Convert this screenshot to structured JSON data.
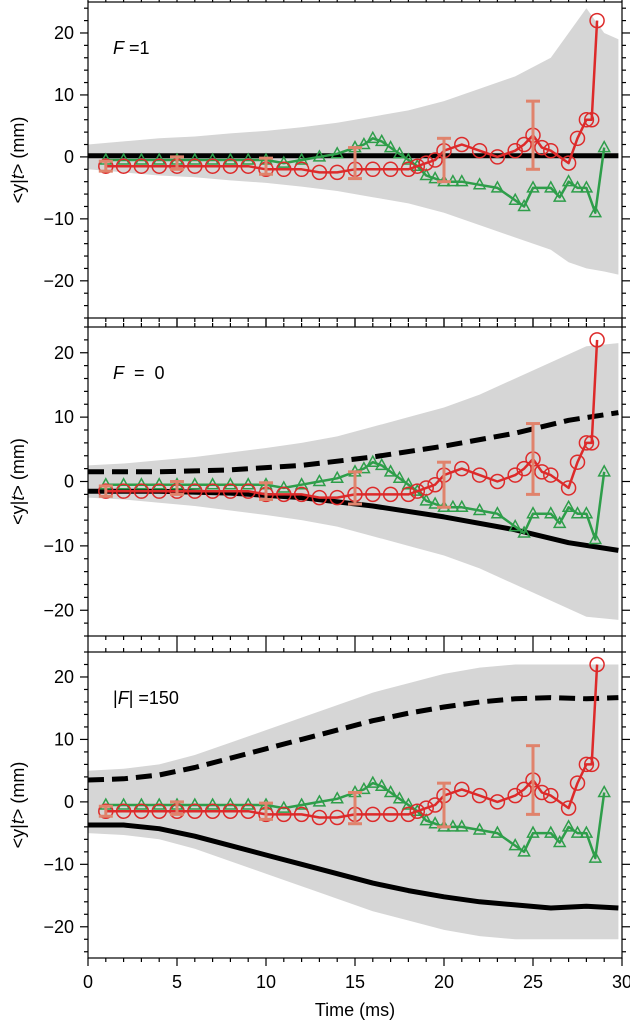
{
  "chart_data": [
    {
      "type": "line",
      "panel_label": {
        "name": "F",
        "rest": " =1"
      },
      "ylabel": {
        "pre": "<y|",
        "ital": "t",
        "post": "> (mm)"
      },
      "xlabel": "",
      "xlim": [
        0,
        30
      ],
      "ylim": [
        -26,
        25
      ],
      "yticks": [
        "−20",
        "−10",
        "0",
        "10",
        "20"
      ],
      "ytick_values": [
        -20,
        -10,
        0,
        10,
        20
      ],
      "xticks": [],
      "show_xtick_labels": false,
      "band": {
        "color": "#d6d6d6",
        "x": [
          0,
          2,
          4,
          6,
          8,
          10,
          12,
          14,
          16,
          18,
          20,
          22,
          24,
          26,
          27,
          28,
          29,
          29.8
        ],
        "upper": [
          2,
          2.5,
          3,
          3.3,
          3.8,
          4.2,
          4.8,
          5.5,
          6.5,
          7.5,
          9,
          11,
          13,
          16,
          20,
          24,
          20,
          19
        ],
        "lower": [
          -2,
          -2.5,
          -3,
          -3.3,
          -3.8,
          -4.2,
          -4.8,
          -5.5,
          -6.5,
          -7.5,
          -9,
          -11,
          -13,
          -15,
          -17,
          -18,
          -18.5,
          -19
        ]
      },
      "bounds": [
        {
          "style": "solid",
          "color": "#000000",
          "x": [
            0,
            5,
            10,
            15,
            20,
            25,
            29.8
          ],
          "y": [
            0.2,
            0.2,
            0.2,
            0.2,
            0.2,
            0.2,
            0.2
          ]
        }
      ],
      "series": [
        {
          "color": "#2e9e4a",
          "marker": "triangle",
          "x": [
            1,
            2,
            3,
            4,
            5,
            6,
            7,
            8,
            9,
            10,
            11,
            12,
            13,
            14,
            15,
            15.5,
            16,
            16.5,
            17,
            17.5,
            18,
            18.5,
            19,
            19.5,
            20,
            20.5,
            21,
            22,
            23,
            24,
            24.5,
            25,
            26,
            26.5,
            27,
            27.5,
            28,
            28.5,
            29
          ],
          "y": [
            -0.5,
            -0.5,
            -0.5,
            -0.5,
            -0.5,
            -0.5,
            -0.5,
            -0.5,
            -0.5,
            -0.5,
            -1,
            -0.5,
            0,
            0.5,
            1.5,
            2,
            3,
            2.5,
            1.5,
            0.5,
            -0.5,
            -1.5,
            -3,
            -3.5,
            -4,
            -4,
            -4,
            -4.5,
            -5,
            -7,
            -8,
            -5,
            -5,
            -6.5,
            -4,
            -5,
            -5,
            -9,
            1.5
          ]
        },
        {
          "color": "#dd2a2a",
          "marker": "circle",
          "x": [
            1,
            2,
            3,
            4,
            5,
            6,
            7,
            8,
            9,
            10,
            11,
            12,
            13,
            14,
            15,
            16,
            17,
            18,
            18.5,
            19,
            19.5,
            20,
            21,
            22,
            23,
            24,
            24.5,
            25,
            25.5,
            26,
            27,
            27.5,
            28,
            28.3,
            28.6
          ],
          "y": [
            -1.5,
            -1.5,
            -1.5,
            -1.5,
            -1.5,
            -1.5,
            -1.5,
            -1.5,
            -1.5,
            -2,
            -2,
            -2,
            -2.5,
            -2.5,
            -2,
            -2,
            -2,
            -2,
            -1.5,
            -1,
            -0.5,
            1,
            2,
            1,
            0,
            1,
            2,
            3.5,
            1.5,
            1,
            -1,
            3,
            6,
            6,
            22
          ]
        }
      ],
      "error_bars": {
        "color": "#e0836c",
        "x": [
          1,
          5,
          10,
          15,
          20,
          25
        ],
        "y": [
          -1.5,
          -1,
          -1.5,
          -1,
          -0.5,
          3.5
        ],
        "err": [
          0.8,
          1,
          1.3,
          2.5,
          3.5,
          5.5
        ]
      }
    },
    {
      "type": "line",
      "panel_label": {
        "name": "F",
        "rest": "  =  0"
      },
      "ylabel": {
        "pre": "<y|",
        "ital": "t",
        "post": "> (mm)"
      },
      "xlabel": "",
      "xlim": [
        0,
        30
      ],
      "ylim": [
        -24,
        24
      ],
      "yticks": [
        "−20",
        "−10",
        "0",
        "10",
        "20"
      ],
      "ytick_values": [
        -20,
        -10,
        0,
        10,
        20
      ],
      "show_xtick_labels": false,
      "band": {
        "color": "#d6d6d6",
        "x": [
          0,
          2,
          4,
          6,
          8,
          10,
          12,
          14,
          16,
          18,
          20,
          22,
          24,
          26,
          28,
          29.8
        ],
        "upper": [
          2.5,
          2.8,
          3.3,
          3.8,
          4.5,
          5.2,
          6,
          7,
          8.5,
          10,
          11.5,
          13.5,
          16,
          18.5,
          21,
          21.5
        ],
        "lower": [
          -2.5,
          -2.8,
          -3.3,
          -3.8,
          -4.5,
          -5.2,
          -6,
          -7,
          -8.5,
          -10,
          -11.5,
          -13.5,
          -16,
          -18.5,
          -21,
          -21.5
        ]
      },
      "bounds": [
        {
          "style": "dashed",
          "color": "#000000",
          "x": [
            0,
            4,
            8,
            12,
            16,
            20,
            24,
            27,
            29.8
          ],
          "y": [
            1.5,
            1.5,
            1.8,
            2.5,
            3.8,
            5.5,
            7.5,
            9.5,
            10.7
          ]
        },
        {
          "style": "solid",
          "color": "#000000",
          "x": [
            0,
            4,
            8,
            12,
            16,
            20,
            24,
            27,
            29.8
          ],
          "y": [
            -1.5,
            -1.5,
            -1.8,
            -2.5,
            -3.8,
            -5.5,
            -7.5,
            -9.5,
            -10.7
          ]
        }
      ],
      "series": [
        {
          "color": "#2e9e4a",
          "marker": "triangle",
          "x": [
            1,
            2,
            3,
            4,
            5,
            6,
            7,
            8,
            9,
            10,
            11,
            12,
            13,
            14,
            15,
            15.5,
            16,
            16.5,
            17,
            17.5,
            18,
            18.5,
            19,
            19.5,
            20,
            20.5,
            21,
            22,
            23,
            24,
            24.5,
            25,
            26,
            26.5,
            27,
            27.5,
            28,
            28.5,
            29
          ],
          "y": [
            -0.5,
            -0.5,
            -0.5,
            -0.5,
            -0.5,
            -0.5,
            -0.5,
            -0.5,
            -0.5,
            -0.5,
            -1,
            -0.5,
            0,
            0.5,
            1.5,
            2,
            3,
            2.5,
            1.5,
            0.5,
            -0.5,
            -1.5,
            -3,
            -3.5,
            -4,
            -4,
            -4,
            -4.5,
            -5,
            -7,
            -8,
            -5,
            -5,
            -6.5,
            -4,
            -5,
            -5,
            -9,
            1.5
          ]
        },
        {
          "color": "#dd2a2a",
          "marker": "circle",
          "x": [
            1,
            2,
            3,
            4,
            5,
            6,
            7,
            8,
            9,
            10,
            11,
            12,
            13,
            14,
            15,
            16,
            17,
            18,
            18.5,
            19,
            19.5,
            20,
            21,
            22,
            23,
            24,
            24.5,
            25,
            25.5,
            26,
            27,
            27.5,
            28,
            28.3,
            28.6
          ],
          "y": [
            -1.5,
            -1.5,
            -1.5,
            -1.5,
            -1.5,
            -1.5,
            -1.5,
            -1.5,
            -1.5,
            -2,
            -2,
            -2,
            -2.5,
            -2.5,
            -2,
            -2,
            -2,
            -2,
            -1.5,
            -1,
            -0.5,
            1,
            2,
            1,
            0,
            1,
            2,
            3.5,
            1.5,
            1,
            -1,
            3,
            6,
            6,
            22
          ]
        }
      ],
      "error_bars": {
        "color": "#e0836c",
        "x": [
          1,
          5,
          10,
          15,
          20,
          25
        ],
        "y": [
          -1.5,
          -1,
          -1.5,
          -1,
          -0.5,
          3.5
        ],
        "err": [
          0.8,
          1,
          1.3,
          2.5,
          3.5,
          5.5
        ]
      }
    },
    {
      "type": "line",
      "panel_label": {
        "pre": "|",
        "name": "F",
        "rest": "| =150"
      },
      "ylabel": {
        "pre": "<y|",
        "ital": "t",
        "post": "> (mm)"
      },
      "xlabel": "Time (ms)",
      "xlim": [
        0,
        30
      ],
      "ylim": [
        -25,
        24
      ],
      "yticks": [
        "−20",
        "−10",
        "0",
        "10",
        "20"
      ],
      "ytick_values": [
        -20,
        -10,
        0,
        10,
        20
      ],
      "xticks": [
        "0",
        "5",
        "10",
        "15",
        "20",
        "25",
        "30"
      ],
      "xtick_values": [
        0,
        5,
        10,
        15,
        20,
        25,
        30
      ],
      "show_xtick_labels": true,
      "band": {
        "color": "#d6d6d6",
        "x": [
          0,
          2,
          4,
          6,
          8,
          10,
          12,
          14,
          16,
          18,
          20,
          22,
          24,
          26,
          28,
          29.8
        ],
        "upper": [
          5,
          5.3,
          6,
          7.5,
          9.5,
          11.5,
          13.5,
          15.5,
          17.5,
          19,
          20.5,
          21.5,
          22,
          22,
          22,
          22
        ],
        "lower": [
          -5,
          -5.3,
          -6,
          -7.5,
          -9.5,
          -11.5,
          -13.5,
          -15.5,
          -17.5,
          -19,
          -20.5,
          -21.5,
          -22,
          -22,
          -22,
          -22
        ]
      },
      "bounds": [
        {
          "style": "dashed",
          "color": "#000000",
          "x": [
            0,
            2,
            4,
            6,
            8,
            10,
            12,
            14,
            16,
            18,
            20,
            22,
            24,
            26,
            28,
            29.8
          ],
          "y": [
            3.5,
            3.7,
            4.3,
            5.5,
            7,
            8.5,
            10,
            11.5,
            13,
            14.2,
            15.2,
            16,
            16.5,
            16.7,
            16.5,
            16.7
          ]
        },
        {
          "style": "solid",
          "color": "#000000",
          "x": [
            0,
            2,
            4,
            6,
            8,
            10,
            12,
            14,
            16,
            18,
            20,
            22,
            24,
            26,
            28,
            29.8
          ],
          "y": [
            -3.7,
            -3.7,
            -4.3,
            -5.5,
            -7,
            -8.5,
            -10,
            -11.5,
            -13,
            -14.2,
            -15.2,
            -16,
            -16.5,
            -17,
            -16.7,
            -17
          ]
        }
      ],
      "series": [
        {
          "color": "#2e9e4a",
          "marker": "triangle",
          "x": [
            1,
            2,
            3,
            4,
            5,
            6,
            7,
            8,
            9,
            10,
            11,
            12,
            13,
            14,
            15,
            15.5,
            16,
            16.5,
            17,
            17.5,
            18,
            18.5,
            19,
            19.5,
            20,
            20.5,
            21,
            22,
            23,
            24,
            24.5,
            25,
            26,
            26.5,
            27,
            27.5,
            28,
            28.5,
            29
          ],
          "y": [
            -0.5,
            -0.5,
            -0.5,
            -0.5,
            -0.5,
            -0.5,
            -0.5,
            -0.5,
            -0.5,
            -0.5,
            -1,
            -0.5,
            0,
            0.5,
            1.5,
            2,
            3,
            2.5,
            1.5,
            0.5,
            -0.5,
            -1.5,
            -3,
            -3.5,
            -4,
            -4,
            -4,
            -4.5,
            -5,
            -7,
            -8,
            -5,
            -5,
            -6.5,
            -4,
            -5,
            -5,
            -9,
            1.5
          ]
        },
        {
          "color": "#dd2a2a",
          "marker": "circle",
          "x": [
            1,
            2,
            3,
            4,
            5,
            6,
            7,
            8,
            9,
            10,
            11,
            12,
            13,
            14,
            15,
            16,
            17,
            18,
            18.5,
            19,
            19.5,
            20,
            21,
            22,
            23,
            24,
            24.5,
            25,
            25.5,
            26,
            27,
            27.5,
            28,
            28.3,
            28.6
          ],
          "y": [
            -1.5,
            -1.5,
            -1.5,
            -1.5,
            -1.5,
            -1.5,
            -1.5,
            -1.5,
            -1.5,
            -2,
            -2,
            -2,
            -2.5,
            -2.5,
            -2,
            -2,
            -2,
            -2,
            -1.5,
            -1,
            -0.5,
            1,
            2,
            1,
            0,
            1,
            2,
            3.5,
            1.5,
            1,
            -1,
            3,
            6,
            6,
            22
          ]
        }
      ],
      "error_bars": {
        "color": "#e0836c",
        "x": [
          1,
          5,
          10,
          15,
          20,
          25
        ],
        "y": [
          -1.5,
          -1,
          -1.5,
          -1,
          -0.5,
          3.5
        ],
        "err": [
          0.8,
          1,
          1.3,
          2.5,
          3.5,
          5.5
        ]
      }
    }
  ]
}
